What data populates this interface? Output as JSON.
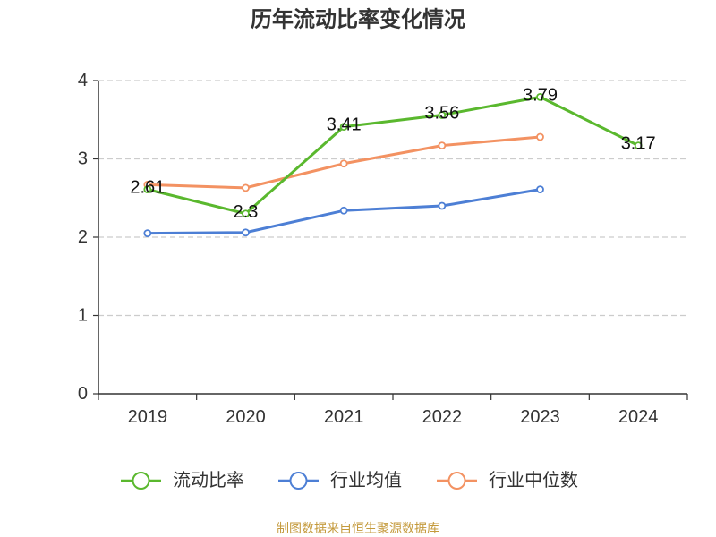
{
  "footer": "制图数据来自恒生聚源数据库",
  "colors": {
    "axis": "#333333",
    "grid": "#cccccc",
    "footer": "#c49a3c"
  },
  "chart_data": {
    "type": "line",
    "title": "历年流动比率变化情况",
    "categories": [
      "2019",
      "2020",
      "2021",
      "2022",
      "2023",
      "2024"
    ],
    "ylim": [
      0,
      4
    ],
    "yticks": [
      "0",
      "1",
      "2",
      "3",
      "4"
    ],
    "grid": true,
    "legend": "bottom",
    "label_series": "流动比率",
    "series": [
      {
        "name": "流动比率",
        "color": "#5ab82e",
        "values": [
          2.61,
          2.3,
          3.41,
          3.56,
          3.79,
          3.17
        ]
      },
      {
        "name": "行业均值",
        "color": "#4d7fd5",
        "values": [
          2.05,
          2.06,
          2.34,
          2.4,
          2.61,
          null
        ]
      },
      {
        "name": "行业中位数",
        "color": "#f39262",
        "values": [
          2.67,
          2.63,
          2.94,
          3.17,
          3.28,
          null
        ]
      }
    ]
  }
}
